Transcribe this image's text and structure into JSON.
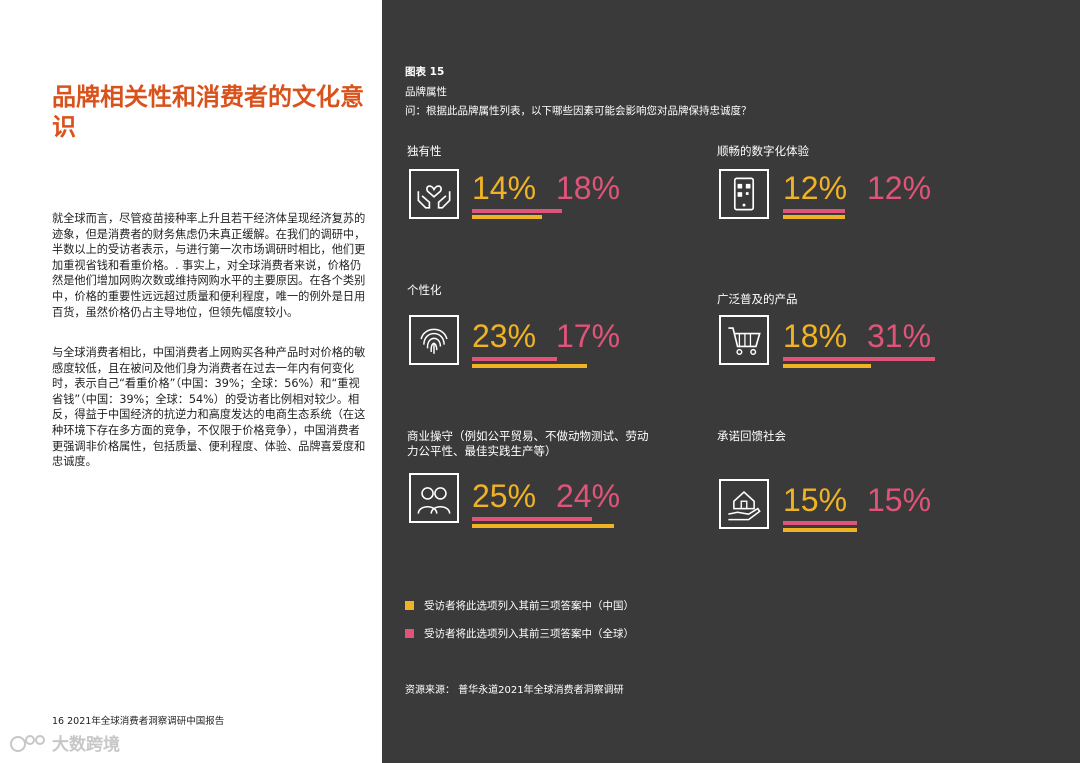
{
  "left": {
    "title": "品牌相关性和消费者的文化意识",
    "paragraph_1": "就全球而言，尽管疫苗接种率上升且若干经济体呈现经济复苏的迹象，但是消费者的财务焦虑仍未真正缓解。在我们的调研中，半数以上的受访者表示，与进行第一次市场调研时相比，他们更加重视省钱和看重价格。. 事实上，对全球消费者来说，价格仍然是他们增加网购次数或维持网购水平的主要原因。在各个类别中，价格的重要性远远超过质量和便利程度，唯一的例外是日用百货，虽然价格仍占主导地位，但领先幅度较小。",
    "paragraph_2": "与全球消费者相比，中国消费者上网购买各种产品时对价格的敏感度较低，且在被问及他们身为消费者在过去一年内有何变化时，表示自己“看重价格”（中国：39%；全球：56%）和“重视省钱”（中国：39%；全球：54%）的受访者比例相对较少。相反，得益于中国经济的抗逆力和高度发达的电商生态系统（在这种环境下存在多方面的竞争，不仅限于价格竞争），中国消费者更强调非价格属性，包括质量、便利程度、体验、品牌喜爱度和忠诚度。",
    "footer": "16  2021年全球消费者洞察调研中国报告",
    "watermark": "大数跨境"
  },
  "figure": {
    "number": "图表 15",
    "title": "品牌属性",
    "question": "问：根据此品牌属性列表，以下哪些因素可能会影响您对品牌保持忠诚度？",
    "items": [
      {
        "label": "独有性",
        "icon": "heart-hands-icon",
        "china": "14%",
        "global": "18%",
        "china_value": 14,
        "global_value": 18
      },
      {
        "label": "顺畅的数字化体验",
        "icon": "phone-qr-icon",
        "china": "12%",
        "global": "12%",
        "china_value": 12,
        "global_value": 12
      },
      {
        "label": "个性化",
        "icon": "fingerprint-icon",
        "china": "23%",
        "global": "17%",
        "china_value": 23,
        "global_value": 17
      },
      {
        "label": "广泛普及的产品",
        "icon": "shopping-cart-icon",
        "china": "18%",
        "global": "31%",
        "china_value": 18,
        "global_value": 31
      },
      {
        "label": "商业操守（例如公平贸易、不做动物测试、劳动力公平性、最佳实践生产等）",
        "icon": "people-icon",
        "china": "25%",
        "global": "24%",
        "china_value": 25,
        "global_value": 24
      },
      {
        "label": "承诺回馈社会",
        "icon": "house-hand-icon",
        "china": "15%",
        "global": "15%",
        "china_value": 15,
        "global_value": 15
      }
    ],
    "legend": {
      "china": "受访者将此选项列入其前三项答案中（中国）",
      "global": "受访者将此选项列入其前三项答案中（全球）"
    },
    "source": "资源来源： 普华永道2021年全球消费者洞察调研",
    "colors": {
      "china": "#f0b323",
      "global": "#e0547a",
      "title": "#d9521c",
      "panel": "#3b3a3b"
    }
  }
}
